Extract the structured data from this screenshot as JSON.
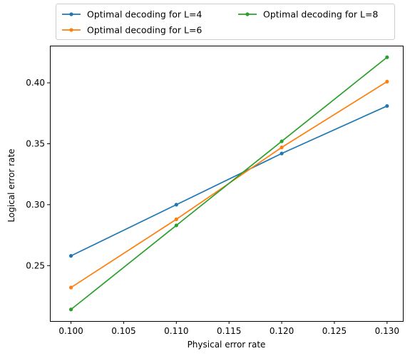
{
  "chart_data": {
    "type": "line",
    "xlabel": "Physical error rate",
    "ylabel": "Logical error rate",
    "xlim": [
      0.098,
      0.1315
    ],
    "ylim": [
      0.2045,
      0.4305
    ],
    "xticks": [
      "0.100",
      "0.105",
      "0.110",
      "0.115",
      "0.120",
      "0.125",
      "0.130"
    ],
    "xtick_values": [
      0.1,
      0.105,
      0.11,
      0.115,
      0.12,
      0.125,
      0.13
    ],
    "yticks": [
      "0.25",
      "0.30",
      "0.35",
      "0.40"
    ],
    "ytick_values": [
      0.25,
      0.3,
      0.35,
      0.4
    ],
    "grid": false,
    "legend_position": "top-center, above plot, 2 columns",
    "x": [
      0.1,
      0.11,
      0.12,
      0.13
    ],
    "series": [
      {
        "name": "Optimal decoding for L=4",
        "color": "#1f77b4",
        "values": [
          0.258,
          0.3,
          0.342,
          0.381
        ]
      },
      {
        "name": "Optimal decoding for L=6",
        "color": "#ff7f0e",
        "values": [
          0.232,
          0.288,
          0.347,
          0.401
        ]
      },
      {
        "name": "Optimal decoding for L=8",
        "color": "#2ca02c",
        "values": [
          0.214,
          0.283,
          0.352,
          0.421
        ]
      }
    ]
  }
}
